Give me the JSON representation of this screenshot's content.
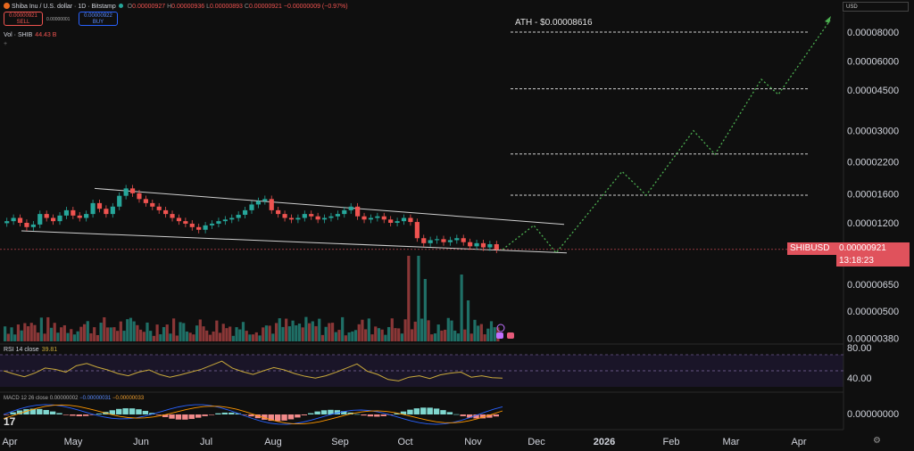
{
  "header": {
    "symbol": "Shiba Inu / U.S. dollar · 1D · Bitstamp",
    "o_key": "O",
    "o": "0.00000927",
    "h_key": "H",
    "h": "0.00000936",
    "l_key": "L",
    "l": "0.00000893",
    "c_key": "C",
    "c": "0.00000921",
    "change": "−0.00000009 (−0.97%)"
  },
  "trade": {
    "sell_price": "0.00000921",
    "sell_label": "SELL",
    "buy_price": "0.00000922",
    "buy_label": "BUY",
    "spread": "0.00000001"
  },
  "volume": {
    "label": "Vol · SHIB",
    "value": "44.43 B"
  },
  "plus_icon": "+",
  "currency": "USD",
  "rsi": {
    "label": "RSI 14 close",
    "value": "39.81"
  },
  "macd": {
    "label": "MACD 12 26 close",
    "v1": "0.00000002",
    "v2": "−0.00000031",
    "v3": "−0.00000033"
  },
  "price_tag": {
    "symbol": "SHIBUSD",
    "price": "0.00000921",
    "countdown": "13:18:23"
  },
  "ath_label": "ATH - $0.00008616",
  "logo_text": "17",
  "settings_icon": "⚙",
  "colors": {
    "up": "#26a69a",
    "down": "#ef5350",
    "projection": "#4caf50",
    "rsi": "#c9a93b",
    "accent": "#e0525c",
    "macd_line": "#2962ff",
    "signal_line": "#ff9800"
  },
  "chart_data": {
    "type": "line",
    "scale": "log",
    "price_axis_ticks": [
      8e-05,
      6e-05,
      4.5e-05,
      3e-05,
      2.2e-05,
      1.6e-05,
      1.2e-05,
      6.5e-06,
      5e-06,
      3.8e-06
    ],
    "price_axis_labels": [
      "0.00008000",
      "0.00006000",
      "0.00004500",
      "0.00003000",
      "0.00002200",
      "0.00001600",
      "0.00001200",
      "0.00000650",
      "0.00000500",
      "0.00000380"
    ],
    "months": [
      "Apr",
      "May",
      "Jun",
      "Jul",
      "Aug",
      "Sep",
      "Oct",
      "Nov",
      "Dec",
      "2026",
      "Feb",
      "Mar",
      "Apr"
    ],
    "price_series": [
      1.22e-05,
      1.26e-05,
      1.2e-05,
      1.15e-05,
      1.18e-05,
      1.31e-05,
      1.26e-05,
      1.22e-05,
      1.29e-05,
      1.36e-05,
      1.29e-05,
      1.26e-05,
      1.31e-05,
      1.46e-05,
      1.38e-05,
      1.31e-05,
      1.41e-05,
      1.57e-05,
      1.69e-05,
      1.61e-05,
      1.52e-05,
      1.46e-05,
      1.41e-05,
      1.36e-05,
      1.31e-05,
      1.26e-05,
      1.22e-05,
      1.19e-05,
      1.15e-05,
      1.12e-05,
      1.17e-05,
      1.19e-05,
      1.22e-05,
      1.24e-05,
      1.26e-05,
      1.3e-05,
      1.36e-05,
      1.44e-05,
      1.49e-05,
      1.52e-05,
      1.36e-05,
      1.31e-05,
      1.26e-05,
      1.24e-05,
      1.26e-05,
      1.31e-05,
      1.28e-05,
      1.24e-05,
      1.26e-05,
      1.28e-05,
      1.31e-05,
      1.36e-05,
      1.41e-05,
      1.28e-05,
      1.24e-05,
      1.26e-05,
      1.28e-05,
      1.24e-05,
      1.2e-05,
      1.22e-05,
      1.26e-05,
      1.21e-05,
      1.03e-05,
      9.8e-06,
      1.01e-05,
      1.02e-05,
      9.9e-06,
      1.01e-05,
      1.03e-05,
      9.9e-06,
      9.5e-06,
      9.8e-06,
      9.4e-06,
      9.7e-06,
      9.2e-06
    ],
    "channel_upper": [
      [
        1.69e-05,
        1.182e-05
      ]
    ],
    "channel_lower": [
      [
        1.108e-05,
        8.9e-06
      ]
    ],
    "ath_value": 8.616e-05,
    "resistance_levels": [
      8e-05,
      4.55e-05,
      2.38e-05,
      1.58e-05
    ],
    "projection_path": [
      9.2e-06,
      1.17e-05,
      8.9e-06,
      2e-05,
      1.58e-05,
      3e-05,
      2.37e-05,
      5e-05,
      4.3e-05,
      9e-05
    ],
    "rsi_levels": [
      80,
      40
    ],
    "rsi_axis_labels": [
      "80.00",
      "40.00"
    ],
    "rsi_series": [
      55,
      48,
      42,
      50,
      61,
      58,
      52,
      66,
      71,
      63,
      57,
      49,
      44,
      52,
      57,
      47,
      41,
      46,
      52,
      58,
      67,
      76,
      61,
      53,
      47,
      55,
      62,
      57,
      49,
      43,
      39,
      44,
      52,
      61,
      70,
      54,
      47,
      36,
      33,
      41,
      44,
      38,
      46,
      50,
      52,
      41,
      44,
      40,
      39
    ],
    "macd_axis_label": "0.00000000"
  }
}
